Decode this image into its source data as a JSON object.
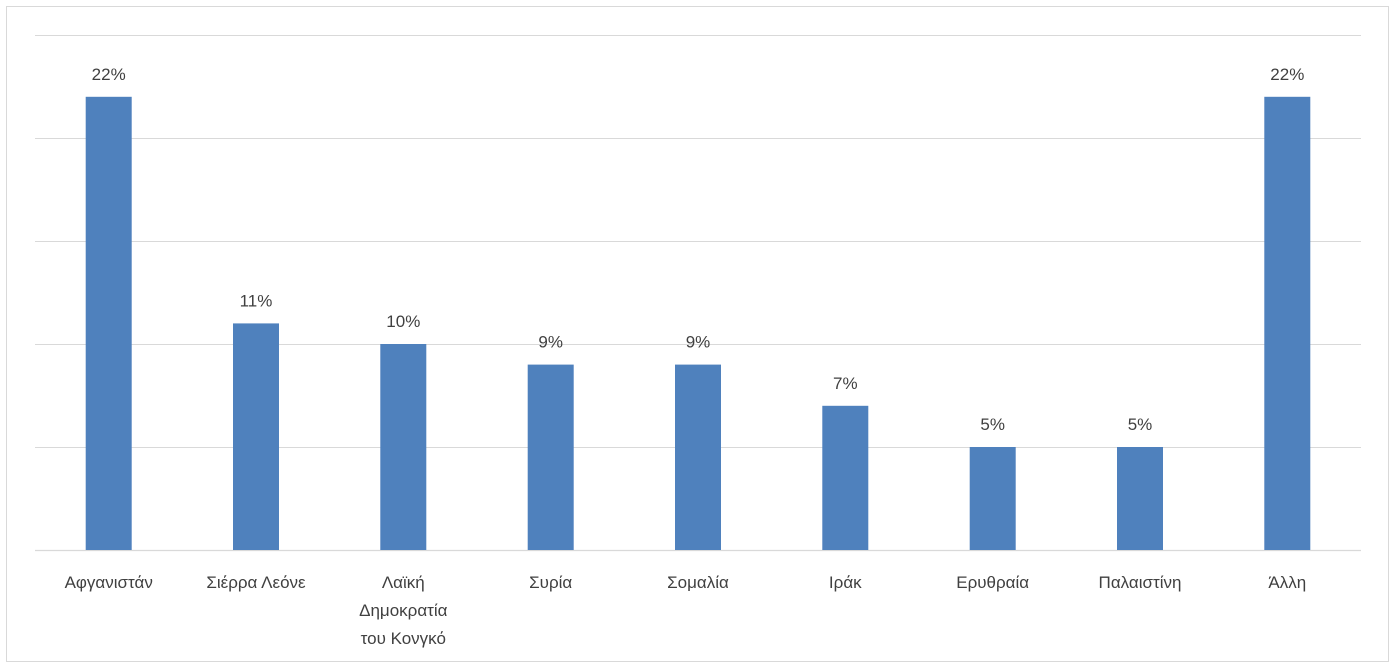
{
  "chart_data": {
    "type": "bar",
    "title": "",
    "xlabel": "",
    "ylabel": "",
    "categories": [
      "Αφγανιστάν",
      "Σιέρρα Λεόνε",
      "Λαϊκή Δημοκρατία του Κονγκό",
      "Συρία",
      "Σομαλία",
      "Ιράκ",
      "Ερυθραία",
      "Παλαιστίνη",
      "Άλλη"
    ],
    "category_lines": [
      [
        "Αφγανιστάν"
      ],
      [
        "Σιέρρα Λεόνε"
      ],
      [
        "Λαϊκή",
        "Δημοκρατία",
        "του Κονγκό"
      ],
      [
        "Συρία"
      ],
      [
        "Σομαλία"
      ],
      [
        "Ιράκ"
      ],
      [
        "Ερυθραία"
      ],
      [
        "Παλαιστίνη"
      ],
      [
        "Άλλη"
      ]
    ],
    "values": [
      22,
      11,
      10,
      9,
      9,
      7,
      5,
      5,
      22
    ],
    "data_labels": [
      "22%",
      "11%",
      "10%",
      "9%",
      "9%",
      "7%",
      "5%",
      "5%",
      "22%"
    ],
    "unit": "%",
    "ylim": [
      0,
      25
    ],
    "grid_step": 5,
    "grid": true,
    "legend": "none",
    "bar_color": "#4f81bd",
    "grid_color": "#d9d9d9",
    "text_color": "#404040"
  }
}
